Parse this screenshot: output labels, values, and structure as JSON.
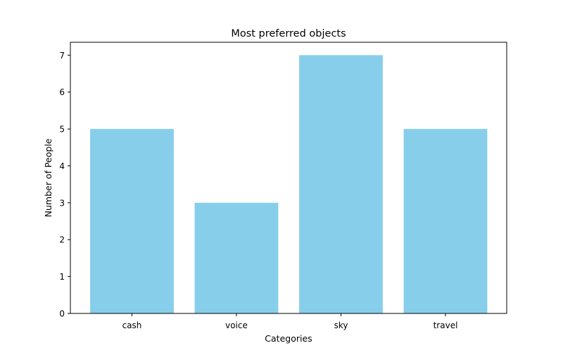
{
  "chart_data": {
    "type": "bar",
    "title": "Most preferred objects",
    "xlabel": "Categories",
    "ylabel": "Number of People",
    "categories": [
      "cash",
      "voice",
      "sky",
      "travel"
    ],
    "values": [
      5,
      3,
      7,
      5
    ],
    "ylim": [
      0,
      7.35
    ],
    "yticks": [
      0,
      1,
      2,
      3,
      4,
      5,
      6,
      7
    ],
    "grid": false,
    "bar_color": "#87ceeb"
  }
}
